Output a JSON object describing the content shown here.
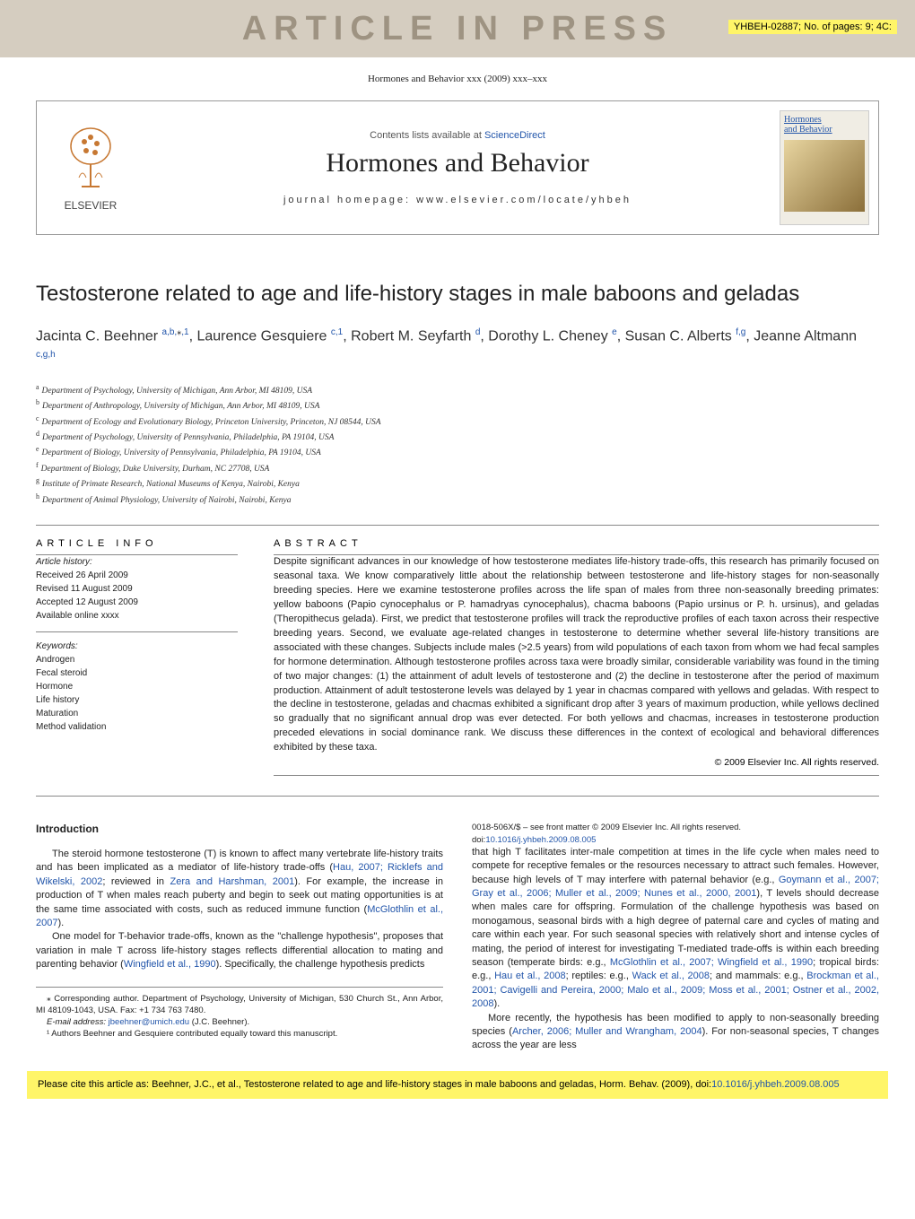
{
  "watermark": "ARTICLE IN PRESS",
  "article_id": "YHBEH-02887; No. of pages: 9; 4C:",
  "journal_ref": "Hormones and Behavior xxx (2009) xxx–xxx",
  "header": {
    "contents_prefix": "Contents lists available at ",
    "contents_link": "ScienceDirect",
    "journal_name": "Hormones and Behavior",
    "homepage_prefix": "journal homepage: ",
    "homepage": "www.elsevier.com/locate/yhbeh",
    "publisher": "ELSEVIER",
    "cover_title1": "Hormones",
    "cover_title2": "and Behavior"
  },
  "title": "Testosterone related to age and life-history stages in male baboons and geladas",
  "authors_html": "Jacinta C. Beehner <sup>a,b,</sup><sup class='star'>⁎</sup><sup>,1</sup>, Laurence Gesquiere <sup>c,1</sup>, Robert M. Seyfarth <sup>d</sup>, Dorothy L. Cheney <sup>e</sup>, Susan C. Alberts <sup>f,g</sup>, Jeanne Altmann <sup>c,g,h</sup>",
  "affiliations": {
    "a": "Department of Psychology, University of Michigan, Ann Arbor, MI 48109, USA",
    "b": "Department of Anthropology, University of Michigan, Ann Arbor, MI 48109, USA",
    "c": "Department of Ecology and Evolutionary Biology, Princeton University, Princeton, NJ 08544, USA",
    "d": "Department of Psychology, University of Pennsylvania, Philadelphia, PA 19104, USA",
    "e": "Department of Biology, University of Pennsylvania, Philadelphia, PA 19104, USA",
    "f": "Department of Biology, Duke University, Durham, NC 27708, USA",
    "g": "Institute of Primate Research, National Museums of Kenya, Nairobi, Kenya",
    "h": "Department of Animal Physiology, University of Nairobi, Nairobi, Kenya"
  },
  "article_info": {
    "heading": "ARTICLE INFO",
    "history_label": "Article history:",
    "received": "Received 26 April 2009",
    "revised": "Revised 11 August 2009",
    "accepted": "Accepted 12 August 2009",
    "online": "Available online xxxx",
    "keywords_label": "Keywords:",
    "keywords": [
      "Androgen",
      "Fecal steroid",
      "Hormone",
      "Life history",
      "Maturation",
      "Method validation"
    ]
  },
  "abstract": {
    "heading": "ABSTRACT",
    "text": "Despite significant advances in our knowledge of how testosterone mediates life-history trade-offs, this research has primarily focused on seasonal taxa. We know comparatively little about the relationship between testosterone and life-history stages for non-seasonally breeding species. Here we examine testosterone profiles across the life span of males from three non-seasonally breeding primates: yellow baboons (Papio cynocephalus or P. hamadryas cynocephalus), chacma baboons (Papio ursinus or P. h. ursinus), and geladas (Theropithecus gelada). First, we predict that testosterone profiles will track the reproductive profiles of each taxon across their respective breeding years. Second, we evaluate age-related changes in testosterone to determine whether several life-history transitions are associated with these changes. Subjects include males (>2.5 years) from wild populations of each taxon from whom we had fecal samples for hormone determination. Although testosterone profiles across taxa were broadly similar, considerable variability was found in the timing of two major changes: (1) the attainment of adult levels of testosterone and (2) the decline in testosterone after the period of maximum production. Attainment of adult testosterone levels was delayed by 1 year in chacmas compared with yellows and geladas. With respect to the decline in testosterone, geladas and chacmas exhibited a significant drop after 3 years of maximum production, while yellows declined so gradually that no significant annual drop was ever detected. For both yellows and chacmas, increases in testosterone production preceded elevations in social dominance rank. We discuss these differences in the context of ecological and behavioral differences exhibited by these taxa.",
    "copyright": "© 2009 Elsevier Inc. All rights reserved."
  },
  "intro": {
    "heading": "Introduction",
    "p1a": "The steroid hormone testosterone (T) is known to affect many vertebrate life-history traits and has been implicated as a mediator of life-history trade-offs (",
    "p1_link1": "Hau, 2007; Ricklefs and Wikelski, 2002",
    "p1b": "; reviewed in ",
    "p1_link2": "Zera and Harshman, 2001",
    "p1c": "). For example, the increase in production of T when males reach puberty and begin to seek out mating opportunities is at the same time associated with costs, such as reduced immune function (",
    "p1_link3": "McGlothlin et al., 2007",
    "p1d": ").",
    "p2a": "One model for T-behavior trade-offs, known as the \"challenge hypothesis\", proposes that variation in male T across life-history stages reflects differential allocation to mating and parenting behavior (",
    "p2_link1": "Wingfield et al., 1990",
    "p2b": "). Specifically, the challenge hypothesis predicts",
    "p3a": "that high T facilitates inter-male competition at times in the life cycle when males need to compete for receptive females or the resources necessary to attract such females. However, because high levels of T may interfere with paternal behavior (e.g., ",
    "p3_link1": "Goymann et al., 2007; Gray et al., 2006; Muller et al., 2009; Nunes et al., 2000, 2001",
    "p3b": "), T levels should decrease when males care for offspring. Formulation of the challenge hypothesis was based on monogamous, seasonal birds with a high degree of paternal care and cycles of mating and care within each year. For such seasonal species with relatively short and intense cycles of mating, the period of interest for investigating T-mediated trade-offs is within each breeding season (temperate birds: e.g., ",
    "p3_link2": "McGlothlin et al., 2007; Wingfield et al., 1990",
    "p3c": "; tropical birds: e.g., ",
    "p3_link3": "Hau et al., 2008",
    "p3d": "; reptiles: e.g., ",
    "p3_link4": "Wack et al., 2008",
    "p3e": "; and mammals: e.g., ",
    "p3_link5": "Brockman et al., 2001; Cavigelli and Pereira, 2000; Malo et al., 2009; Moss et al., 2001; Ostner et al., 2002, 2008",
    "p3f": ").",
    "p4a": "More recently, the hypothesis has been modified to apply to non-seasonally breeding species (",
    "p4_link1": "Archer, 2006; Muller and Wrangham, 2004",
    "p4b": "). For non-seasonal species, T changes across the year are less"
  },
  "footnotes": {
    "corr": "⁎ Corresponding author. Department of Psychology, University of Michigan, 530 Church St., Ann Arbor, MI 48109-1043, USA. Fax: +1 734 763 7480.",
    "email_label": "E-mail address: ",
    "email": "jbeehner@umich.edu",
    "email_suffix": " (J.C. Beehner).",
    "equal": "¹ Authors Beehner and Gesquiere contributed equally toward this manuscript."
  },
  "issn": {
    "line1": "0018-506X/$ – see front matter © 2009 Elsevier Inc. All rights reserved.",
    "doi_prefix": "doi:",
    "doi": "10.1016/j.yhbeh.2009.08.005"
  },
  "citation": {
    "text": "Please cite this article as: Beehner, J.C., et al., Testosterone related to age and life-history stages in male baboons and geladas, Horm. Behav. (2009), doi:",
    "doi": "10.1016/j.yhbeh.2009.08.005"
  }
}
